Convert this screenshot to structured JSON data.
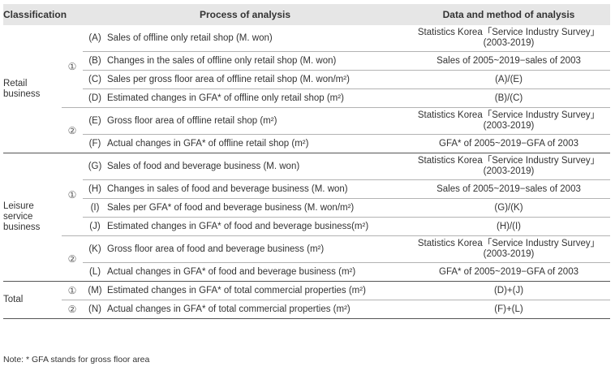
{
  "headers": {
    "classification": "Classification",
    "process": "Process of analysis",
    "data_method": "Data and method of analysis"
  },
  "groups": {
    "retail": [
      "Retail",
      "business"
    ],
    "leisure": [
      "Leisure",
      "service",
      "business"
    ],
    "total": "Total"
  },
  "markers": {
    "one": "①",
    "two": "②"
  },
  "rows": [
    {
      "letter": "(A)",
      "process": "Sales of offline only retail shop (M. won)",
      "data": [
        "Statistics Korea「Service Industry Survey」",
        "(2003-2019)"
      ]
    },
    {
      "letter": "(B)",
      "process": "Changes in the sales of offline only retail shop (M. won)",
      "data": [
        "Sales of 2005~2019−sales of 2003"
      ]
    },
    {
      "letter": "(C)",
      "process": "Sales per gross floor area of offline retail shop (M. won/m²)",
      "data": [
        "(A)/(E)"
      ]
    },
    {
      "letter": "(D)",
      "process": "Estimated changes in GFA* of offline only retail shop (m²)",
      "data": [
        "(B)/(C)"
      ]
    },
    {
      "letter": "(E)",
      "process": "Gross floor area of offline retail shop (m²)",
      "data": [
        "Statistics Korea「Service Industry Survey」",
        "(2003-2019)"
      ]
    },
    {
      "letter": "(F)",
      "process": "Actual changes in GFA* of offline retail shop (m²)",
      "data": [
        "GFA* of 2005~2019−GFA of 2003"
      ]
    },
    {
      "letter": "(G)",
      "process": "Sales of food and beverage business (M. won)",
      "data": [
        "Statistics Korea「Service Industry Survey」",
        "(2003-2019)"
      ]
    },
    {
      "letter": "(H)",
      "process": "Changes in sales of food and beverage business (M. won)",
      "data": [
        "Sales of 2005~2019−sales of 2003"
      ]
    },
    {
      "letter": "(I)",
      "process": "Sales per GFA* of food and beverage business (M. won/m²)",
      "data": [
        "(G)/(K)"
      ]
    },
    {
      "letter": "(J)",
      "process": "Estimated changes in GFA* of food and beverage business(m²)",
      "data": [
        "(H)/(I)"
      ]
    },
    {
      "letter": "(K)",
      "process": "Gross floor area of food and beverage business (m²)",
      "data": [
        "Statistics Korea「Service Industry Survey」",
        "(2003-2019)"
      ]
    },
    {
      "letter": "(L)",
      "process": "Actual changes in GFA* of food and beverage business (m²)",
      "data": [
        "GFA* of 2005~2019−GFA of 2003"
      ]
    },
    {
      "letter": "(M)",
      "process": "Estimated changes in GFA* of total commercial properties (m²)",
      "data": [
        "(D)+(J)"
      ]
    },
    {
      "letter": "(N)",
      "process": "Actual changes in GFA* of total commercial properties (m²)",
      "data": [
        "(F)+(L)"
      ]
    }
  ],
  "note": "Note: * GFA stands for gross floor area"
}
